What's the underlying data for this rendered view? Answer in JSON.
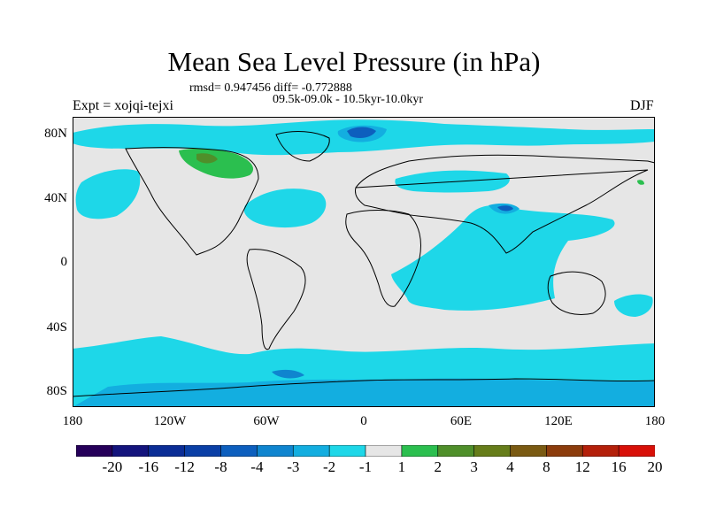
{
  "title": "Mean Sea Level Pressure (in hPa)",
  "stats": "rmsd= 0.947456 diff= -0.772888",
  "period": "09.5k-09.0k - 10.5kyr-10.0kyr",
  "experiment": "Expt = xojqi-tejxi",
  "season": "DJF",
  "lat_labels": [
    "80N",
    "40N",
    "0",
    "40S",
    "80S"
  ],
  "lon_labels": [
    "180",
    "120W",
    "60W",
    "0",
    "60E",
    "120E",
    "180"
  ],
  "colorbar": {
    "colors": [
      "#26005a",
      "#14147d",
      "#0b2d96",
      "#0a3fa6",
      "#0d5fbe",
      "#0f85cf",
      "#13aee0",
      "#1ed7e8",
      "#e6e6e6",
      "#2bbf4f",
      "#4f8f2a",
      "#667d1a",
      "#7a5a12",
      "#8c3c0c",
      "#b4200a",
      "#d81008"
    ],
    "labels": [
      "-20",
      "-16",
      "-12",
      "-8",
      "-4",
      "-3",
      "-2",
      "-1",
      "1",
      "2",
      "3",
      "4",
      "8",
      "12",
      "16",
      "20"
    ]
  },
  "map_colors": {
    "ocean_background": "#e6e6e6",
    "neg_1_to_2": "#1ed7e8",
    "neg_2_to_3": "#13aee0",
    "neg_3_to_4": "#0f85cf",
    "neg_4_to_8": "#0d5fbe",
    "pos_1_to_2": "#2bbf4f",
    "pos_2_to_3": "#4f8f2a"
  }
}
